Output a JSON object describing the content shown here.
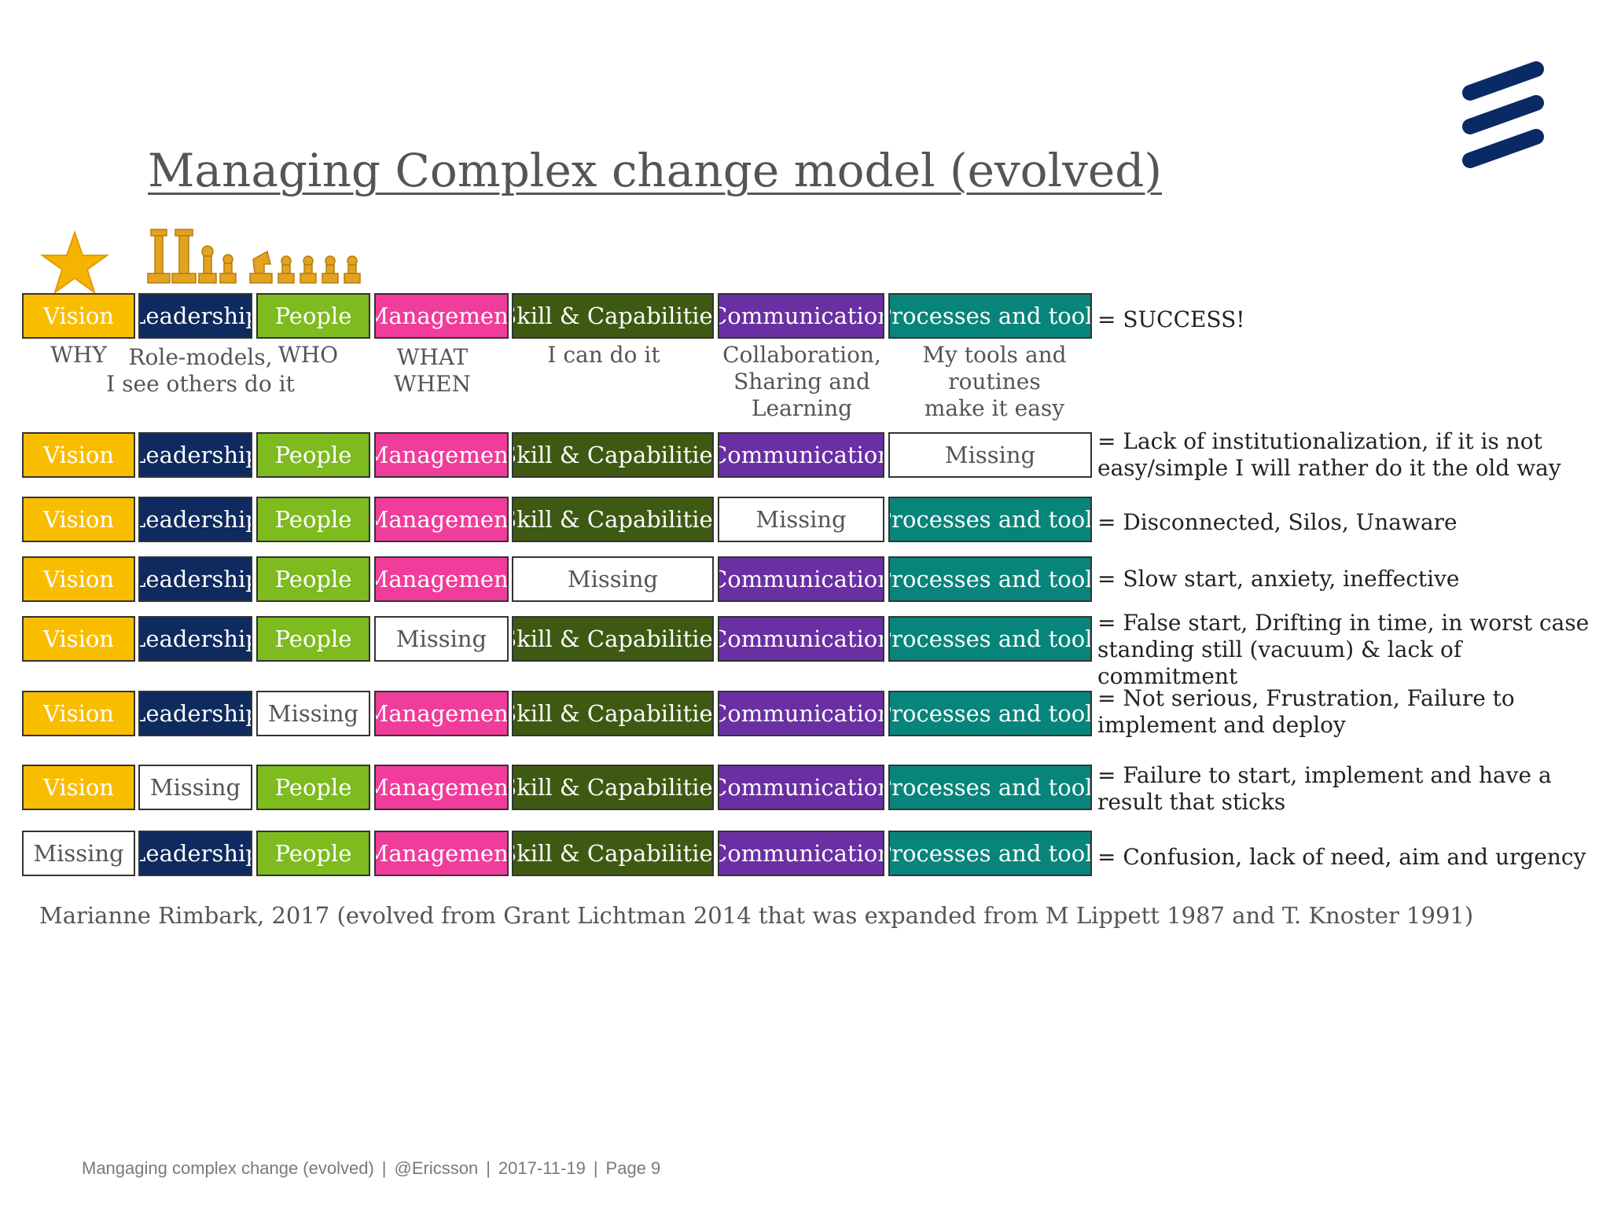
{
  "title": "Managing Complex change model (evolved)",
  "colors": {
    "vision": "#F9BD00",
    "leadership": "#0E2A5E",
    "people": "#7DBB1E",
    "management": "#F03C9A",
    "skill": "#3E5A12",
    "communication": "#6A2FA3",
    "processes": "#08857B",
    "missing": "#FFFFFF",
    "logo": "#0A2A66"
  },
  "icons": [
    "star-icon",
    "chess-pieces-icon",
    "ericsson-logo-icon"
  ],
  "columns": [
    "vision",
    "leadership",
    "people",
    "management",
    "skill",
    "communication",
    "processes"
  ],
  "labels": {
    "vision": "Vision",
    "leadership": "Leadership",
    "people": "People",
    "management": "Management",
    "skill": "Skill & Capabilities",
    "communication": "Communication",
    "processes": "Processes and tools",
    "missing": "Missing"
  },
  "subtitles": {
    "why": "WHY",
    "role_models": "Role-models,\nI see others do it",
    "who": "WHO",
    "what_when": "WHAT\nWHEN",
    "can_do": "I can do it",
    "collaboration": "Collaboration,\nSharing and\nLearning",
    "tools": "My tools and routines\nmake it easy"
  },
  "rows": [
    {
      "missing": null,
      "result": "= SUCCESS!"
    },
    {
      "missing": "processes",
      "result": "= Lack of institutionalization, if it is not easy/simple I will rather do it the old way"
    },
    {
      "missing": "communication",
      "result": "= Disconnected, Silos, Unaware"
    },
    {
      "missing": "skill",
      "result": "= Slow start, anxiety, ineffective"
    },
    {
      "missing": "management",
      "result": "= False start, Drifting in time, in worst case standing still (vacuum) & lack of commitment"
    },
    {
      "missing": "people",
      "result": "= Not serious, Frustration, Failure to implement and deploy"
    },
    {
      "missing": "leadership",
      "result": "= Failure to start, implement and have a result that sticks"
    },
    {
      "missing": "vision",
      "result": "= Confusion, lack of need, aim and urgency"
    }
  ],
  "citation": "Marianne Rimbark, 2017 (evolved from Grant Lichtman 2014 that was expanded from M Lippett 1987 and T. Knoster 1991)",
  "footer": {
    "title": "Mangaging complex change (evolved)",
    "org": "@Ericsson",
    "date": "2017-11-19",
    "page": "Page 9"
  }
}
